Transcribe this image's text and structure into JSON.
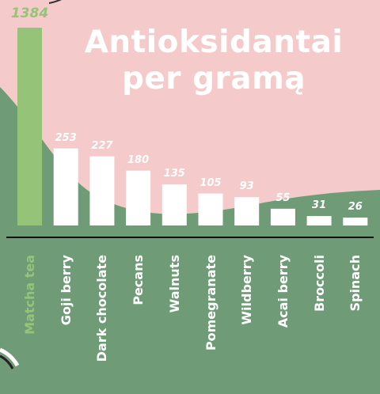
{
  "title_line1": "Antioksidantai",
  "title_line2": "per gramą",
  "colors": {
    "background": "#f5caca",
    "ground": "#6f9b77",
    "bar": "#ffffff",
    "highlight": "#95c479",
    "axis": "#111111"
  },
  "chart_data": {
    "type": "bar",
    "title": "Antioksidantai per gramą",
    "categories": [
      "Matcha tea",
      "Goji berry",
      "Dark chocolate",
      "Pecans",
      "Walnuts",
      "Pomegranate",
      "Wildberry",
      "Acai berry",
      "Broccoli",
      "Spinach"
    ],
    "values": [
      1384,
      253,
      227,
      180,
      135,
      105,
      93,
      55,
      31,
      26
    ],
    "value_labels": [
      "1384",
      "253",
      "227",
      "180",
      "135",
      "105",
      "93",
      "55",
      "31",
      "26"
    ],
    "highlighted_category": "Matcha tea"
  }
}
